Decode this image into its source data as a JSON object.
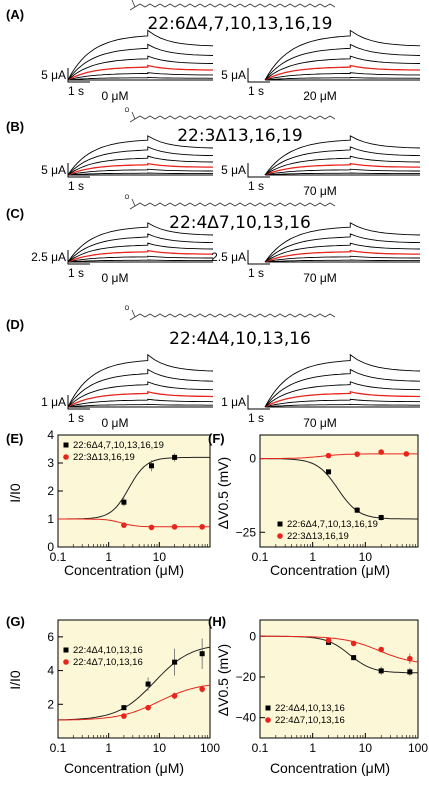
{
  "colors": {
    "black": "#000000",
    "red": "#e8241c",
    "plot_bg": "#fcf7d6",
    "fit_black": "#222222"
  },
  "currents": [
    {
      "label": "(A)",
      "lipid": "22:6Δ4,7,10,13,16,19",
      "left": {
        "scale": "5 μA",
        "time": "1 s",
        "conc": "0 μM"
      },
      "right": {
        "scale": "5 μA",
        "time": "1 s",
        "conc": "20 μM"
      }
    },
    {
      "label": "(B)",
      "lipid": "22:3Δ13,16,19",
      "left": {
        "scale": "5 μA",
        "time": "1 s",
        "conc": ""
      },
      "right": {
        "scale": "5 μA",
        "time": "1 s",
        "conc": "70 μM"
      }
    },
    {
      "label": "(C)",
      "lipid": "22:4Δ7,10,13,16",
      "left": {
        "scale": "2.5 μA",
        "time": "1 s",
        "conc": "0 μM"
      },
      "right": {
        "scale": "2.5 μA",
        "time": "1 s",
        "conc": "70 μM"
      }
    },
    {
      "label": "(D)",
      "lipid": "22:4Δ4,10,13,16",
      "left": {
        "scale": "1 μA",
        "time": "1 s",
        "conc": "0 μM"
      },
      "right": {
        "scale": "1 μA",
        "time": "1 s",
        "conc": "70 μM"
      }
    }
  ],
  "chart_data": [
    {
      "panel": "(E)",
      "type": "scatter",
      "xscale": "log",
      "xlim": [
        0.1,
        100
      ],
      "ylim": [
        0,
        4
      ],
      "xlabel": "Concentration (μM)",
      "ylabel": "I/I0",
      "xticks": [
        "0.1",
        "1",
        "10"
      ],
      "yticks": [
        "0",
        "1",
        "2",
        "3",
        "4"
      ],
      "series": [
        {
          "name": "22:6Δ4,7,10,13,16,19",
          "color": "#000000",
          "x": [
            2,
            7,
            20
          ],
          "y": [
            1.6,
            2.9,
            3.2
          ],
          "err": [
            0.15,
            0.2,
            0.15
          ]
        },
        {
          "name": "22:3Δ13,16,19",
          "color": "#e8241c",
          "x": [
            2,
            7,
            20,
            70
          ],
          "y": [
            0.78,
            0.7,
            0.72,
            0.72
          ],
          "err": [
            0.03,
            0.03,
            0.03,
            0.03
          ]
        }
      ]
    },
    {
      "panel": "(F)",
      "type": "scatter",
      "xscale": "log",
      "xlim": [
        0.1,
        100
      ],
      "ylim": [
        -30,
        8
      ],
      "xlabel": "Concentration (μM)",
      "ylabel": "ΔV0.5 (mV)",
      "xticks": [
        "0.1",
        "1",
        "10"
      ],
      "yticks": [
        "0",
        "−25"
      ],
      "series": [
        {
          "name": "22:6Δ4,7,10,13,16,19",
          "color": "#000000",
          "x": [
            2,
            7,
            20
          ],
          "y": [
            -4.5,
            -17.5,
            -20
          ],
          "err": [
            0.6,
            1.0,
            1.0
          ]
        },
        {
          "name": "22:3Δ13,16,19",
          "color": "#e8241c",
          "x": [
            2,
            7,
            20,
            60
          ],
          "y": [
            1.0,
            1.5,
            2.2,
            1.6
          ],
          "err": [
            0.5,
            0.5,
            0.6,
            0.5
          ]
        }
      ]
    },
    {
      "panel": "(G)",
      "type": "scatter",
      "xscale": "log",
      "xlim": [
        0.1,
        100
      ],
      "ylim": [
        0,
        7
      ],
      "xlabel": "Concentration (μM)",
      "ylabel": "I/I0",
      "xticks": [
        "0.1",
        "1",
        "10",
        "100"
      ],
      "yticks": [
        "2",
        "4",
        "6"
      ],
      "series": [
        {
          "name": "22:4Δ4,10,13,16",
          "color": "#000000",
          "x": [
            2,
            6,
            20,
            70
          ],
          "y": [
            1.8,
            3.2,
            4.5,
            5.0
          ],
          "err": [
            0.15,
            0.4,
            0.8,
            0.9
          ]
        },
        {
          "name": "22:4Δ7,10,13,16",
          "color": "#e8241c",
          "x": [
            2,
            6,
            20,
            70
          ],
          "y": [
            1.3,
            1.8,
            2.5,
            2.9
          ],
          "err": [
            0.08,
            0.15,
            0.2,
            0.2
          ]
        }
      ]
    },
    {
      "panel": "(H)",
      "type": "scatter",
      "xscale": "log",
      "xlim": [
        0.1,
        100
      ],
      "ylim": [
        -50,
        8
      ],
      "xlabel": "Concentration (μM)",
      "ylabel": "ΔV0.5 (mV)",
      "xticks": [
        "0.1",
        "1",
        "10",
        "100"
      ],
      "yticks": [
        "0",
        "−20",
        "−40"
      ],
      "series": [
        {
          "name": "22:4Δ4,10,13,16",
          "color": "#000000",
          "x": [
            2,
            6,
            20,
            70
          ],
          "y": [
            -3,
            -10.5,
            -17,
            -17.5
          ],
          "err": [
            1.0,
            1.2,
            2.0,
            2.0
          ]
        },
        {
          "name": "22:4Δ7,10,13,16",
          "color": "#e8241c",
          "x": [
            2,
            6,
            20,
            70
          ],
          "y": [
            -2,
            -3.5,
            -6.5,
            -11
          ],
          "err": [
            0.8,
            1.0,
            1.2,
            2.5
          ]
        }
      ]
    }
  ]
}
